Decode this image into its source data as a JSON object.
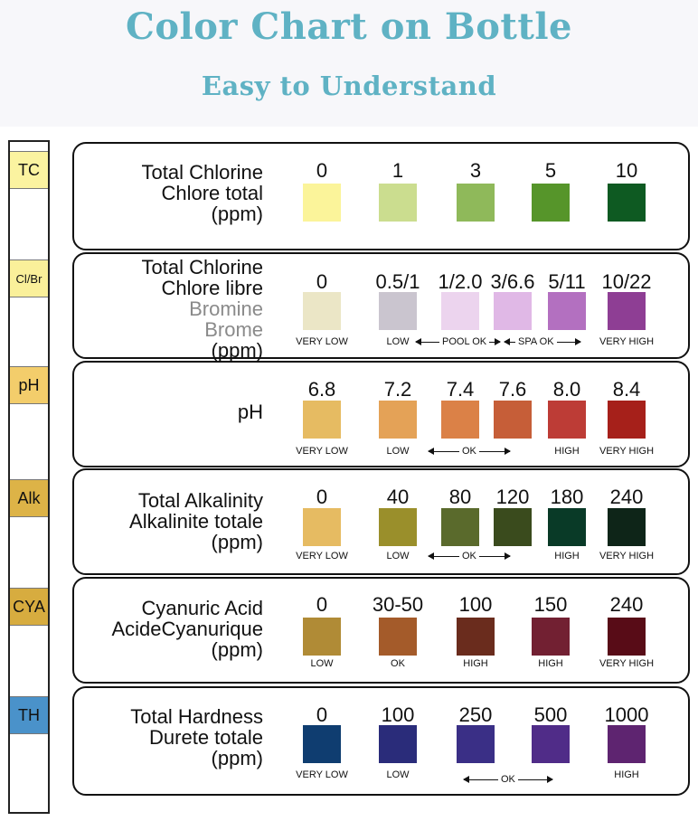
{
  "header": {
    "title": "Color Chart on Bottle",
    "subtitle": "Easy to Understand"
  },
  "strip": {
    "pads": [
      {
        "label": "TC",
        "color": "#fbf3a0"
      },
      {
        "label": "Cl/Br",
        "color": "#faf09a"
      },
      {
        "label": "pH",
        "color": "#f3cd6b"
      },
      {
        "label": "Alk",
        "color": "#ddb347"
      },
      {
        "label": "CYA",
        "color": "#d7ac3f"
      },
      {
        "label": "TH",
        "color": "#4a92ca"
      }
    ]
  },
  "rows": [
    {
      "label_lines": [
        "Total Chlorine",
        "Chlore total",
        "(ppm)"
      ],
      "values": [
        "0",
        "1",
        "3",
        "5",
        "10"
      ],
      "colors": [
        "#fbf49a",
        "#cbdd8f",
        "#8fb95a",
        "#56952a",
        "#0e5a22"
      ],
      "subs": [
        "",
        "",
        "",
        "",
        ""
      ]
    },
    {
      "label_lines": [
        "Total Chlorine",
        "Chlore libre"
      ],
      "grey_lines": [
        "Bromine",
        "Brome"
      ],
      "unit": "(ppm)",
      "values": [
        "0",
        "0.5/1",
        "1/2.0",
        "3/6.6",
        "5/11",
        "10/22"
      ],
      "colors": [
        "#ebe6c6",
        "#cac5cf",
        "#ecd4ee",
        "#e0b8e6",
        "#b370c0",
        "#8e3e94"
      ],
      "subs": [
        "VERY LOW",
        "LOW",
        "",
        "",
        "",
        "VERY HIGH"
      ],
      "arrows": [
        "POOL OK",
        "SPA OK"
      ]
    },
    {
      "label_lines": [
        "pH"
      ],
      "values": [
        "6.8",
        "7.2",
        "7.4",
        "7.6",
        "8.0",
        "8.4"
      ],
      "colors": [
        "#e6bb62",
        "#e4a257",
        "#db8147",
        "#c65e38",
        "#bd3c36",
        "#a6201a"
      ],
      "subs": [
        "VERY LOW",
        "LOW",
        "",
        "",
        "HIGH",
        "VERY HIGH"
      ],
      "arrows": [
        "OK"
      ]
    },
    {
      "label_lines": [
        "Total Alkalinity",
        "Alkalinite totale",
        "(ppm)"
      ],
      "values": [
        "0",
        "40",
        "80",
        "120",
        "180",
        "240"
      ],
      "colors": [
        "#e6bb62",
        "#9a8f2b",
        "#5a6a2c",
        "#3a4b1d",
        "#093a27",
        "#0e2518"
      ],
      "subs": [
        "VERY LOW",
        "LOW",
        "",
        "",
        "HIGH",
        "VERY HIGH"
      ],
      "arrows": [
        "OK"
      ]
    },
    {
      "label_lines": [
        "Cyanuric Acid",
        "AcideCyanurique",
        "(ppm)"
      ],
      "values": [
        "0",
        "30-50",
        "100",
        "150",
        "240"
      ],
      "colors": [
        "#b08b36",
        "#a45b2a",
        "#6a2c1d",
        "#722032",
        "#580c17"
      ],
      "subs": [
        "LOW",
        "OK",
        "HIGH",
        "HIGH",
        "VERY HIGH"
      ]
    },
    {
      "label_lines": [
        "Total Hardness",
        "Durete totale",
        "(ppm)"
      ],
      "values": [
        "0",
        "100",
        "250",
        "500",
        "1000"
      ],
      "colors": [
        "#0f3d70",
        "#2a2c7a",
        "#3a2f86",
        "#502c88",
        "#5e2470"
      ],
      "subs": [
        "VERY LOW",
        "LOW",
        "",
        "",
        "HIGH"
      ],
      "arrows": [
        "OK"
      ]
    }
  ]
}
